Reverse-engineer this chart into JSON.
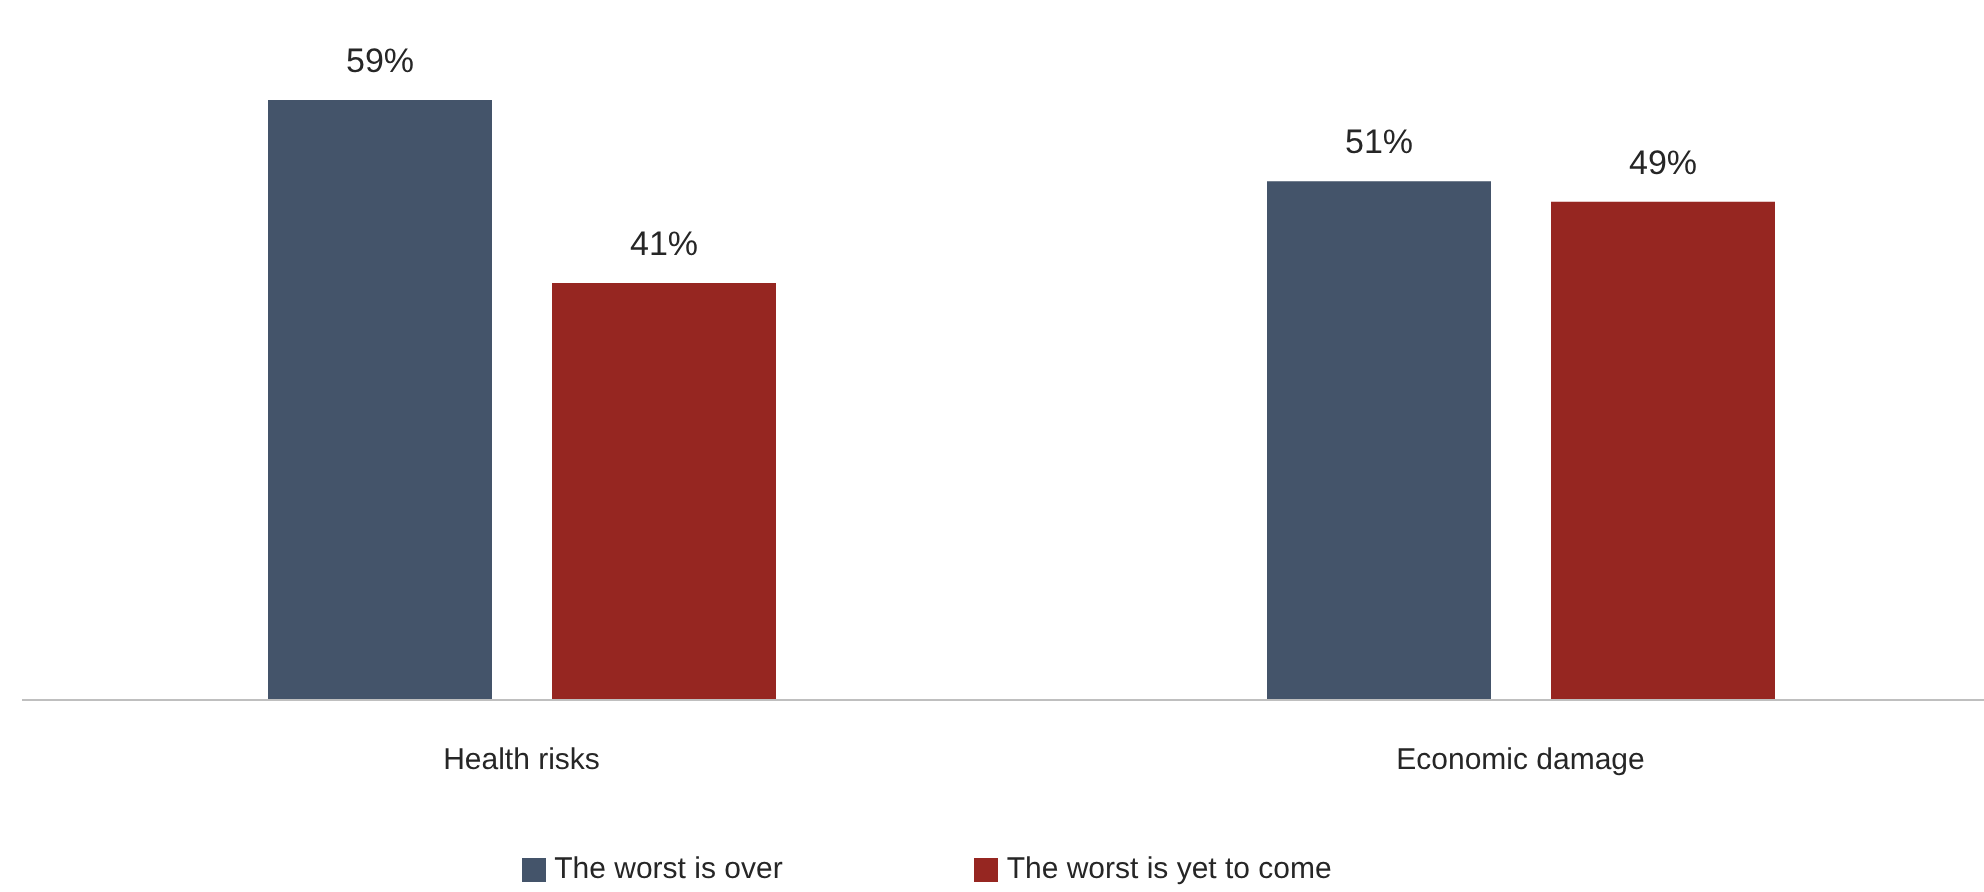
{
  "chart_data": {
    "type": "bar",
    "categories": [
      "Health risks",
      "Economic damage"
    ],
    "series": [
      {
        "name": "The worst is over",
        "color": "#44546a",
        "values": [
          59,
          51
        ],
        "value_labels": [
          "59%",
          "51%"
        ]
      },
      {
        "name": "The worst is yet to come",
        "color": "#962621",
        "values": [
          41,
          49
        ],
        "value_labels": [
          "41%",
          "49%"
        ]
      }
    ],
    "legend": "bottom",
    "tick_labels": "x"
  }
}
